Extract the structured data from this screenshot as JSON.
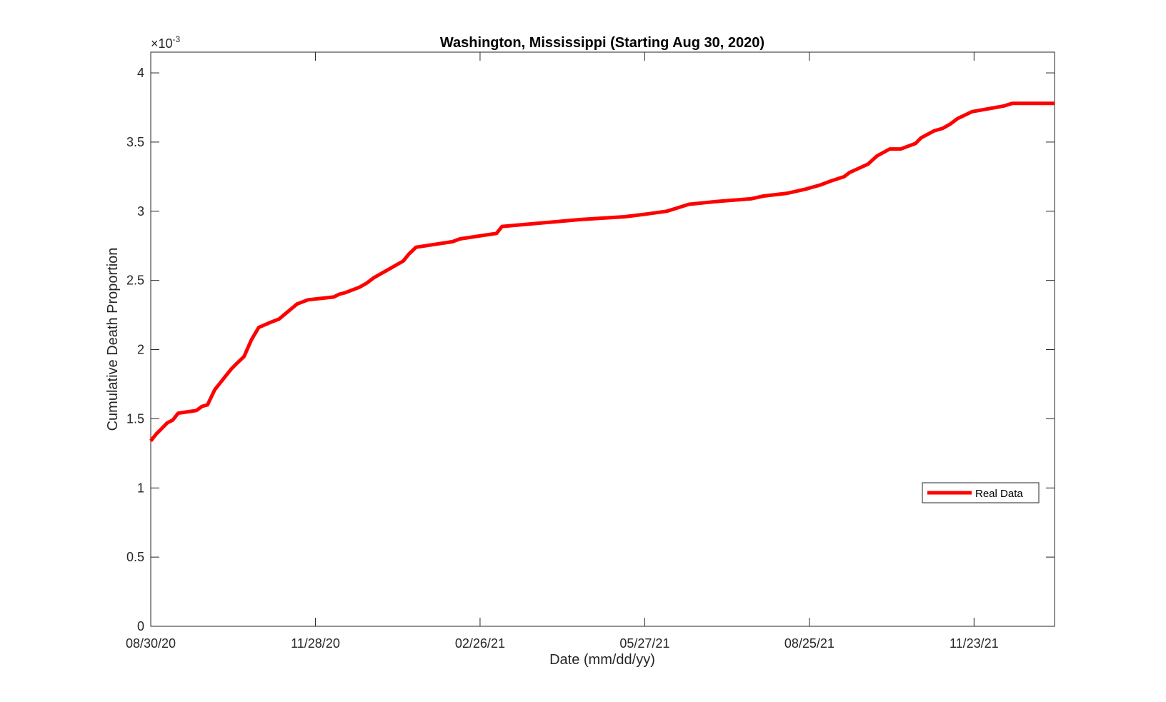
{
  "chart_data": {
    "type": "line",
    "title": "Washington, Mississippi (Starting Aug 30, 2020)",
    "xlabel": "Date (mm/dd/yy)",
    "ylabel": "Cumulative Death Proportion",
    "y_exponent_label": "×10",
    "y_exponent_power": "-3",
    "xlim": [
      "2020-08-30",
      "2022-01-06"
    ],
    "ylim": [
      0,
      4.15
    ],
    "y_ticks": [
      0,
      0.5,
      1,
      1.5,
      2,
      2.5,
      3,
      3.5,
      4
    ],
    "y_tick_labels": [
      "0",
      "0.5",
      "1",
      "1.5",
      "2",
      "2.5",
      "3",
      "3.5",
      "4"
    ],
    "x_ticks": [
      "2020-08-30",
      "2020-11-28",
      "2021-02-26",
      "2021-05-27",
      "2021-08-25",
      "2021-11-23"
    ],
    "x_tick_labels": [
      "08/30/20",
      "11/28/20",
      "02/26/21",
      "05/27/21",
      "08/25/21",
      "11/23/21"
    ],
    "legend_position": "lower-right",
    "grid": false,
    "color": "#ff0000",
    "series": [
      {
        "name": "Real Data",
        "x": [
          "2020-08-30",
          "2020-09-02",
          "2020-09-05",
          "2020-09-08",
          "2020-09-11",
          "2020-09-14",
          "2020-09-24",
          "2020-09-27",
          "2020-09-30",
          "2020-10-04",
          "2020-10-07",
          "2020-10-10",
          "2020-10-13",
          "2020-10-16",
          "2020-10-20",
          "2020-10-24",
          "2020-10-28",
          "2020-11-04",
          "2020-11-08",
          "2020-11-18",
          "2020-11-20",
          "2020-11-24",
          "2020-12-08",
          "2020-12-11",
          "2020-12-14",
          "2020-12-18",
          "2020-12-22",
          "2020-12-26",
          "2020-12-30",
          "2021-01-07",
          "2021-01-15",
          "2021-01-18",
          "2021-01-22",
          "2021-02-11",
          "2021-02-15",
          "2021-03-07",
          "2021-03-10",
          "2021-04-22",
          "2021-05-16",
          "2021-05-28",
          "2021-06-08",
          "2021-06-13",
          "2021-06-20",
          "2021-07-05",
          "2021-07-24",
          "2021-07-31",
          "2021-08-13",
          "2021-08-23",
          "2021-08-31",
          "2021-09-06",
          "2021-09-13",
          "2021-09-16",
          "2021-09-26",
          "2021-10-01",
          "2021-10-08",
          "2021-10-14",
          "2021-10-18",
          "2021-10-22",
          "2021-10-25",
          "2021-11-01",
          "2021-11-06",
          "2021-11-10",
          "2021-11-14",
          "2021-11-22",
          "2021-12-09",
          "2021-12-14",
          "2022-01-06"
        ],
        "y": [
          1.34,
          1.39,
          1.43,
          1.47,
          1.49,
          1.54,
          1.56,
          1.59,
          1.6,
          1.71,
          1.76,
          1.81,
          1.86,
          1.9,
          1.95,
          2.07,
          2.16,
          2.2,
          2.22,
          2.33,
          2.34,
          2.36,
          2.38,
          2.4,
          2.41,
          2.43,
          2.45,
          2.48,
          2.52,
          2.58,
          2.64,
          2.69,
          2.74,
          2.78,
          2.8,
          2.84,
          2.89,
          2.94,
          2.96,
          2.98,
          3.0,
          3.02,
          3.05,
          3.07,
          3.09,
          3.11,
          3.13,
          3.16,
          3.19,
          3.22,
          3.25,
          3.28,
          3.34,
          3.4,
          3.45,
          3.45,
          3.47,
          3.49,
          3.53,
          3.58,
          3.6,
          3.63,
          3.67,
          3.72,
          3.76,
          3.78,
          3.78
        ]
      }
    ]
  }
}
